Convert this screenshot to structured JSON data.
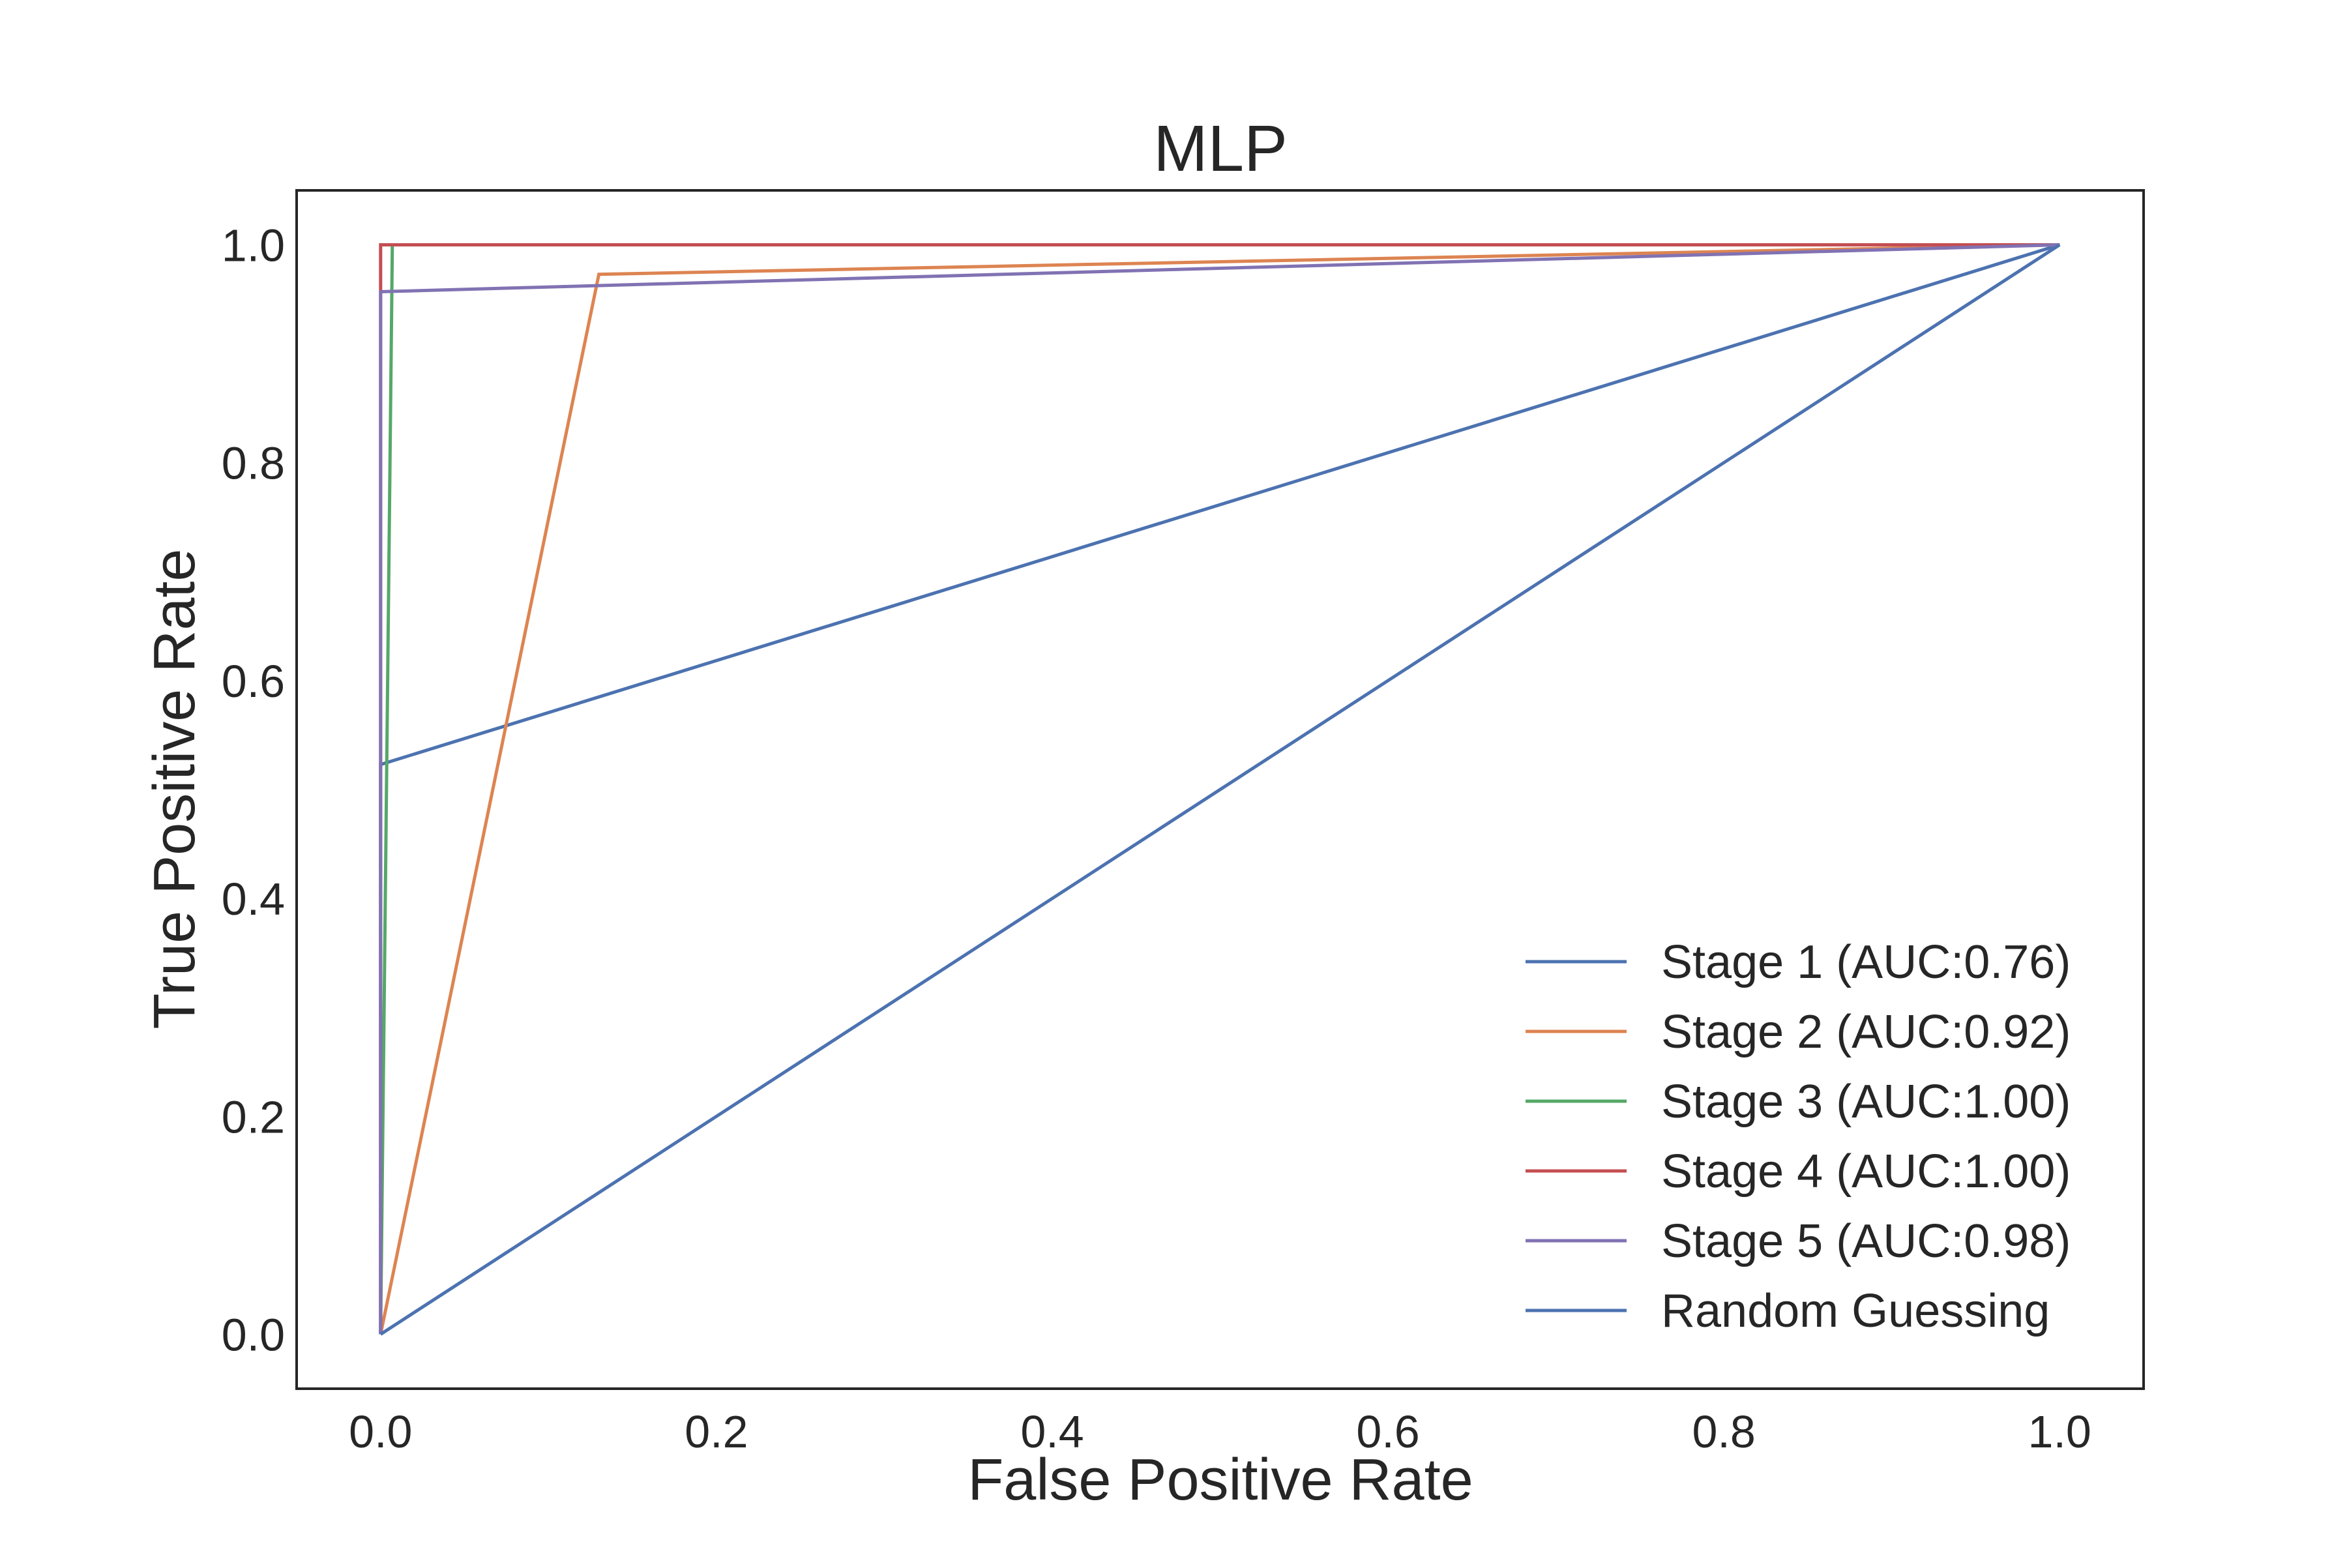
{
  "chart_data": {
    "type": "line",
    "title": "MLP",
    "xlabel": "False Positive Rate",
    "ylabel": "True Positive Rate",
    "xlim": [
      -0.05,
      1.05
    ],
    "ylim": [
      -0.05,
      1.05
    ],
    "xticks": [
      0.0,
      0.2,
      0.4,
      0.6,
      0.8,
      1.0
    ],
    "yticks": [
      0.0,
      0.2,
      0.4,
      0.6,
      0.8,
      1.0
    ],
    "xtick_labels": [
      "0.0",
      "0.2",
      "0.4",
      "0.6",
      "0.8",
      "1.0"
    ],
    "ytick_labels": [
      "0.0",
      "0.2",
      "0.4",
      "0.6",
      "0.8",
      "1.0"
    ],
    "grid": false,
    "legend_position": "lower-right",
    "series": [
      {
        "name": "Stage 1 (AUC:0.76)",
        "color": "#4c72b0",
        "x": [
          0.0,
          0.0,
          1.0
        ],
        "y": [
          0.0,
          0.523,
          1.0
        ]
      },
      {
        "name": "Stage 2 (AUC:0.92)",
        "color": "#dd8452",
        "x": [
          0.0,
          0.13,
          1.0
        ],
        "y": [
          0.0,
          0.973,
          1.0
        ]
      },
      {
        "name": "Stage 3 (AUC:1.00)",
        "color": "#55a868",
        "x": [
          0.0,
          0.007,
          1.0
        ],
        "y": [
          0.0,
          1.0,
          1.0
        ]
      },
      {
        "name": "Stage 4 (AUC:1.00)",
        "color": "#c44e52",
        "x": [
          0.0,
          0.0,
          1.0
        ],
        "y": [
          0.0,
          1.0,
          1.0
        ]
      },
      {
        "name": "Stage 5 (AUC:0.98)",
        "color": "#8172b3",
        "x": [
          0.0,
          0.0,
          1.0
        ],
        "y": [
          0.0,
          0.957,
          1.0
        ]
      },
      {
        "name": "Random Guessing",
        "color": "#4c72b0",
        "x": [
          0.0,
          1.0
        ],
        "y": [
          0.0,
          1.0
        ]
      }
    ]
  }
}
